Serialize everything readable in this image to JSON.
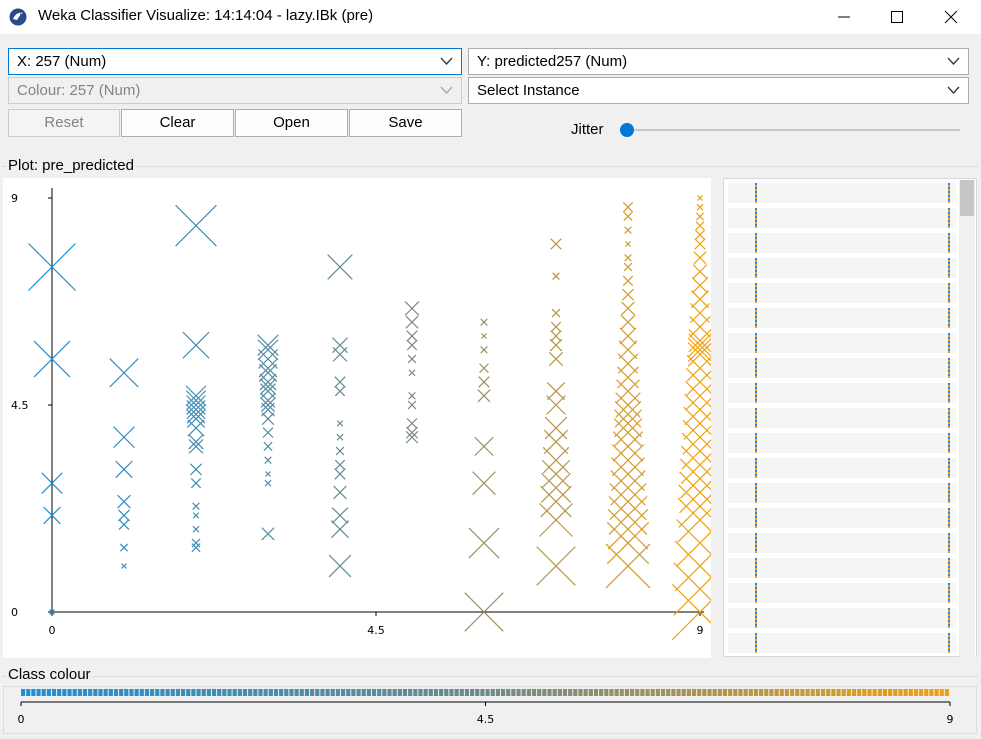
{
  "window": {
    "title": "Weka Classifier Visualize: 14:14:04 - lazy.IBk (pre)",
    "controls": [
      "minimize",
      "maximize",
      "close"
    ]
  },
  "controls": {
    "x_axis": "X: 257 (Num)",
    "y_axis": "Y: predicted257 (Num)",
    "colour": "Colour: 257 (Num)",
    "select_instance": "Select Instance",
    "buttons": {
      "reset": "Reset",
      "clear": "Clear",
      "open": "Open",
      "save": "Save"
    },
    "jitter_label": "Jitter",
    "jitter_value": 0
  },
  "plot": {
    "group_title": "Plot: pre_predicted"
  },
  "chart_data": {
    "type": "scatter",
    "marker": "x",
    "marker_size_encodes": "prediction error",
    "xlim": [
      0,
      9
    ],
    "ylim": [
      0,
      9
    ],
    "x_ticks": [
      "0",
      "4.5",
      "9"
    ],
    "y_ticks": [
      "0",
      "4.5",
      "9"
    ],
    "colour_scale": {
      "low": "#1e8fd6",
      "mid": "#6d8a8a",
      "high": "#f0a010"
    },
    "series": [
      {
        "x": 0,
        "y": [
          7.5,
          5.5,
          2.8,
          2.1,
          0
        ]
      },
      {
        "x": 1,
        "y": [
          5.2,
          3.8,
          3.1,
          2.4,
          2.1,
          1.9,
          1.4,
          1.0
        ]
      },
      {
        "x": 2,
        "y": [
          8.4,
          5.8,
          4.7,
          4.6,
          4.5,
          4.4,
          4.3,
          4.2,
          4.0,
          3.7,
          3.6,
          3.1,
          2.8,
          2.3,
          2.1,
          1.8,
          1.5,
          1.4
        ]
      },
      {
        "x": 3,
        "y": [
          5.8,
          5.7,
          5.5,
          5.3,
          5.2,
          5.0,
          4.9,
          4.8,
          4.6,
          4.5,
          4.4,
          4.2,
          3.9,
          3.6,
          3.3,
          3.0,
          2.8,
          1.7
        ]
      },
      {
        "x": 4,
        "y": [
          7.5,
          5.8,
          5.6,
          5.0,
          4.8,
          4.1,
          3.8,
          3.5,
          3.2,
          3.0,
          2.6,
          2.1,
          1.8,
          1.0
        ]
      },
      {
        "x": 5,
        "y": [
          6.6,
          6.3,
          6.0,
          5.8,
          5.5,
          5.2,
          4.7,
          4.5,
          4.1,
          3.9,
          3.8
        ]
      },
      {
        "x": 6,
        "y": [
          6.3,
          6.0,
          5.7,
          5.3,
          5.0,
          4.7,
          3.6,
          2.8,
          1.5,
          0
        ]
      },
      {
        "x": 7,
        "y": [
          8.0,
          7.3,
          6.5,
          6.2,
          6.0,
          5.8,
          5.5,
          4.8,
          4.5,
          4.0,
          3.7,
          3.3,
          3.0,
          2.7,
          2.4,
          2.0,
          1.0
        ]
      },
      {
        "x": 8,
        "y": [
          8.8,
          8.6,
          8.3,
          8.0,
          7.7,
          7.5,
          7.2,
          6.9,
          6.6,
          6.3,
          6.0,
          5.7,
          5.4,
          5.1,
          4.8,
          4.5,
          4.3,
          4.1,
          3.9,
          3.6,
          3.3,
          3.0,
          2.7,
          2.4,
          2.1,
          1.8,
          1.5,
          1.0
        ]
      },
      {
        "x": 9,
        "y": [
          9.0,
          8.8,
          8.6,
          8.4,
          8.2,
          8.0,
          7.7,
          7.4,
          7.1,
          6.8,
          6.5,
          6.2,
          5.9,
          5.8,
          5.7,
          5.6,
          5.3,
          5.0,
          4.7,
          4.4,
          4.1,
          3.8,
          3.5,
          3.2,
          2.9,
          2.6,
          2.3,
          2.0,
          1.5,
          1.0,
          0.5,
          0
        ]
      }
    ]
  },
  "class_colour": {
    "title": "Class colour",
    "ticks": [
      "0",
      "4.5",
      "9"
    ]
  }
}
